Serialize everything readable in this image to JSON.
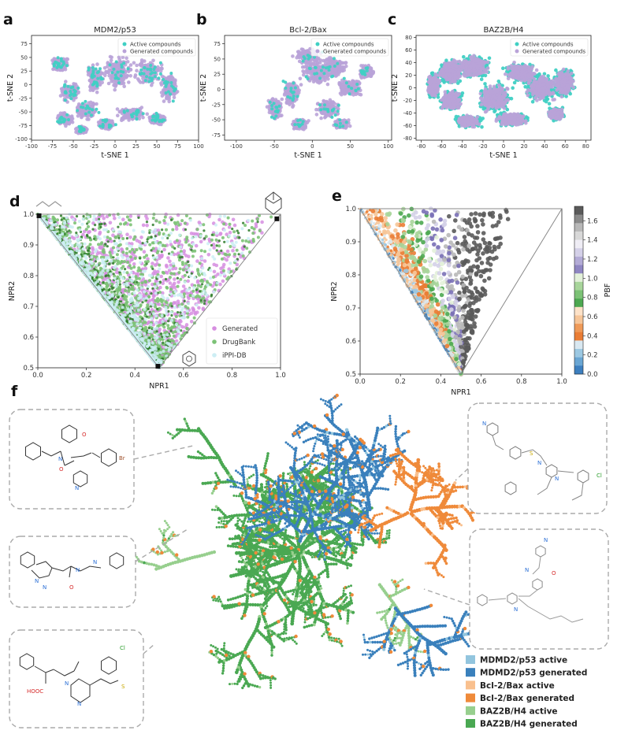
{
  "panels": {
    "a": {
      "letter": "a",
      "title": "MDM2/p53",
      "xlabel": "t-SNE 1",
      "ylabel": "t-SNE 2",
      "xticks": [
        "-100",
        "-75",
        "-50",
        "-25",
        "0",
        "25",
        "50",
        "75",
        "100"
      ],
      "yticks": [
        "75",
        "50",
        "25",
        "0",
        "-25",
        "-50",
        "-75",
        "-100"
      ],
      "legend": [
        "Active compounds",
        "Generated compounds"
      ]
    },
    "b": {
      "letter": "b",
      "title": "Bcl-2/Bax",
      "xlabel": "t-SNE 1",
      "ylabel": "t-SNE 2",
      "xticks": [
        "-100",
        "-50",
        "0",
        "50",
        "100"
      ],
      "yticks": [
        "75",
        "50",
        "25",
        "0",
        "-25",
        "-50",
        "-75"
      ],
      "legend": [
        "Active compounds",
        "Generated compounds"
      ]
    },
    "c": {
      "letter": "c",
      "title": "BAZ2B/H4",
      "xlabel": "t-SNE 1",
      "ylabel": "t-SNE 2",
      "xticks": [
        "-80",
        "-60",
        "-40",
        "-20",
        "0",
        "20",
        "40",
        "60",
        "80"
      ],
      "yticks": [
        "80",
        "60",
        "40",
        "20",
        "0",
        "-20",
        "-40",
        "-60",
        "-80"
      ],
      "legend": [
        "Active compounds",
        "Generated compounds"
      ]
    },
    "d": {
      "letter": "d",
      "xlabel": "NPR1",
      "ylabel": "NPR2",
      "xticks": [
        "0.0",
        "0.2",
        "0.4",
        "0.6",
        "0.8",
        "1.0"
      ],
      "yticks": [
        "1.0",
        "0.9",
        "0.8",
        "0.7",
        "0.6",
        "0.5"
      ],
      "legend": [
        "Generated",
        "DrugBank",
        "iPPI-DB"
      ]
    },
    "e": {
      "letter": "e",
      "xlabel": "NPR1",
      "ylabel": "NPR2",
      "xticks": [
        "0.0",
        "0.2",
        "0.4",
        "0.6",
        "0.8",
        "1.0"
      ],
      "yticks": [
        "1.0",
        "0.9",
        "0.8",
        "0.7",
        "0.6",
        "0.5"
      ],
      "colorbar_label": "PBF",
      "colorbar_ticks": [
        "1.6",
        "1.4",
        "1.2",
        "1.0",
        "0.8",
        "0.6",
        "0.4",
        "0.2",
        "0.0"
      ]
    },
    "f": {
      "letter": "f",
      "legend": [
        "MDMD2/p53 active",
        "MDMD2/p53 generated",
        "Bcl-2/Bax active",
        "Bcl-2/Bax generated",
        "BAZ2B/H4 active",
        "BAZ2B/H4 generated"
      ],
      "atom_labels": {
        "br": "Br",
        "cl": "Cl",
        "hooc": "HOOC",
        "n": "N",
        "o": "O",
        "s": "S"
      }
    }
  },
  "colors": {
    "active_tsne": "#40d0c4",
    "generated_tsne": "#b9a3d8",
    "generated_pmi": "#d68ee0",
    "drugbank": "#7cc276",
    "ippi": "#cdeef4",
    "mdm_active": "#92c5de",
    "mdm_generated": "#3a80bc",
    "bcl_active": "#f9c08e",
    "bcl_generated": "#ef8a3a",
    "baz_active": "#97cf8e",
    "baz_generated": "#4aa852"
  },
  "chart_data": [
    {
      "type": "scatter",
      "title": "MDM2/p53",
      "xlabel": "t-SNE 1",
      "ylabel": "t-SNE 2",
      "xlim": [
        -100,
        100
      ],
      "ylim": [
        -100,
        90
      ],
      "series": [
        {
          "name": "Active compounds"
        },
        {
          "name": "Generated compounds"
        }
      ]
    },
    {
      "type": "scatter",
      "title": "Bcl-2/Bax",
      "xlabel": "t-SNE 1",
      "ylabel": "t-SNE 2",
      "xlim": [
        -115,
        105
      ],
      "ylim": [
        -85,
        90
      ],
      "series": [
        {
          "name": "Active compounds"
        },
        {
          "name": "Generated compounds"
        }
      ]
    },
    {
      "type": "scatter",
      "title": "BAZ2B/H4",
      "xlabel": "t-SNE 1",
      "ylabel": "t-SNE 2",
      "xlim": [
        -85,
        85
      ],
      "ylim": [
        -85,
        88
      ],
      "series": [
        {
          "name": "Active compounds"
        },
        {
          "name": "Generated compounds"
        }
      ]
    },
    {
      "type": "scatter",
      "xlabel": "NPR1",
      "ylabel": "NPR2",
      "xlim": [
        0,
        1
      ],
      "ylim": [
        0.5,
        1
      ],
      "series": [
        {
          "name": "Generated"
        },
        {
          "name": "DrugBank"
        },
        {
          "name": "iPPI-DB"
        }
      ]
    },
    {
      "type": "scatter",
      "xlabel": "NPR1",
      "ylabel": "NPR2",
      "xlim": [
        0,
        1
      ],
      "ylim": [
        0.5,
        1
      ],
      "colorbar": {
        "label": "PBF",
        "range": [
          0,
          1.75
        ]
      }
    },
    {
      "type": "scatter",
      "series": [
        {
          "name": "MDMD2/p53 active"
        },
        {
          "name": "MDMD2/p53 generated"
        },
        {
          "name": "Bcl-2/Bax active"
        },
        {
          "name": "Bcl-2/Bax generated"
        },
        {
          "name": "BAZ2B/H4 active"
        },
        {
          "name": "BAZ2B/H4 generated"
        }
      ]
    }
  ]
}
